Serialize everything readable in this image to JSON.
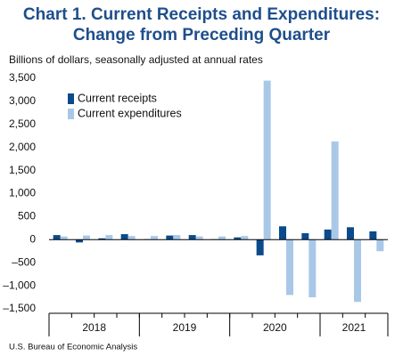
{
  "chart_data": {
    "type": "bar",
    "title": "Chart 1. Current Receipts and Expenditures:",
    "title_line2": "Change from Preceding Quarter",
    "subtitle": "Billions of dollars, seasonally adjusted at annual rates",
    "source": "U.S. Bureau of Economic Analysis",
    "categories": [
      "2018",
      null,
      null,
      null,
      "2019",
      null,
      null,
      null,
      "2020",
      null,
      null,
      null,
      "2021",
      null,
      null
    ],
    "series": [
      {
        "name": "Current receipts",
        "color": "#0b4a8b",
        "values": [
          100,
          -60,
          30,
          120,
          10,
          90,
          100,
          10,
          50,
          -340,
          290,
          140,
          220,
          270,
          180
        ]
      },
      {
        "name": "Current expenditures",
        "color": "#a9c8e8",
        "values": [
          70,
          90,
          100,
          80,
          80,
          100,
          70,
          70,
          80,
          3450,
          -1200,
          -1250,
          2130,
          -1350,
          -250
        ]
      }
    ],
    "ylim": [
      -1500,
      3500
    ],
    "yticks": [
      {
        "value": 3500,
        "label": "3,500"
      },
      {
        "value": 3000,
        "label": "3,000"
      },
      {
        "value": 2500,
        "label": "2,500"
      },
      {
        "value": 2000,
        "label": "2,000"
      },
      {
        "value": 1500,
        "label": "1,500"
      },
      {
        "value": 1000,
        "label": "1,000"
      },
      500,
      0,
      {
        "value": -500,
        "label": "–500"
      },
      {
        "value": -1000,
        "label": "–1,000"
      },
      {
        "value": -1500,
        "label": "–1,500"
      }
    ],
    "grid": false
  }
}
